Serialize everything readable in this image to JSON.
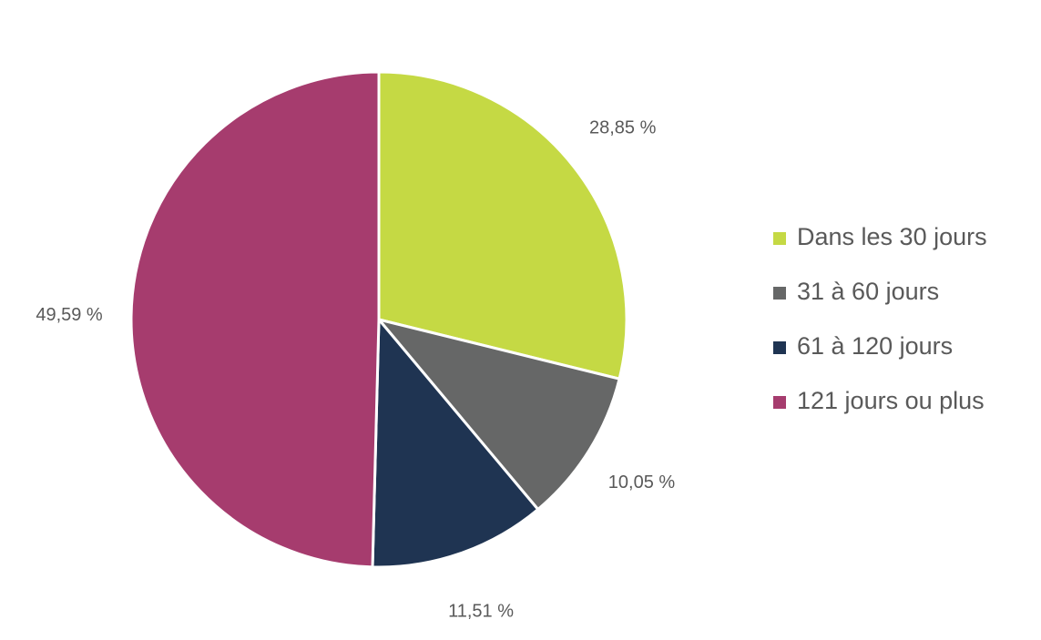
{
  "chart_data": {
    "type": "pie",
    "categories": [
      "Dans les 30 jours",
      "31 à 60 jours",
      "61 à 120 jours",
      "121 jours ou plus"
    ],
    "values": [
      28.85,
      10.05,
      11.51,
      49.59
    ],
    "value_labels": [
      "28,85 %",
      "10,05 %",
      "11,51 %",
      "49,59 %"
    ],
    "colors": [
      "#c5d944",
      "#666767",
      "#1f3452",
      "#a63c6e"
    ]
  }
}
